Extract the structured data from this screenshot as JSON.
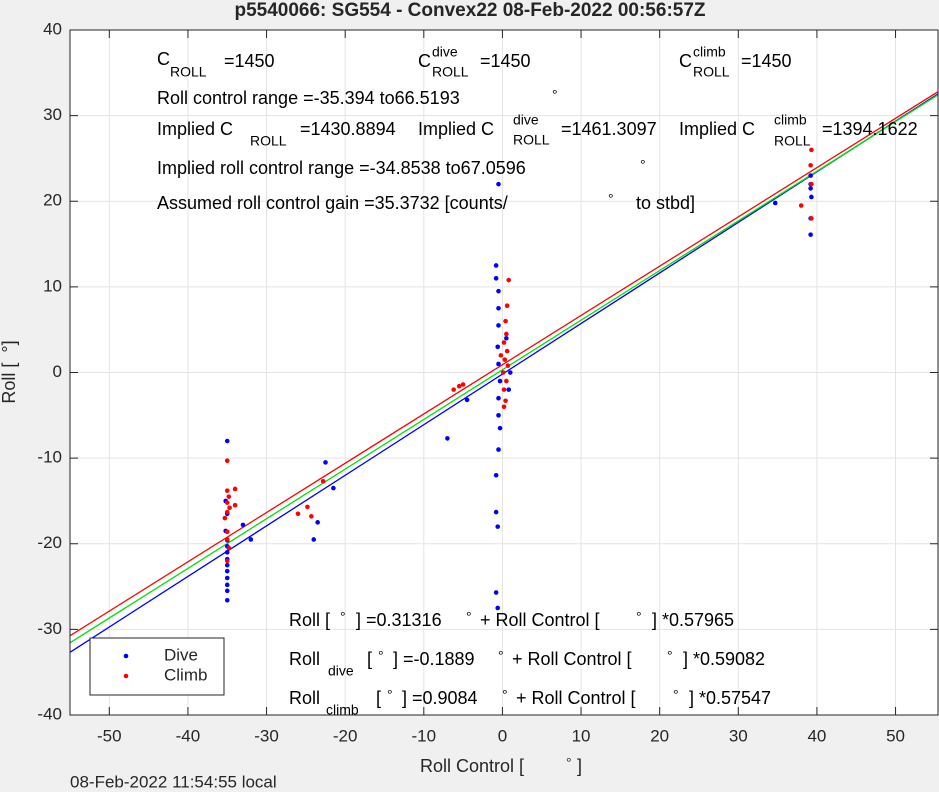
{
  "chart_data": {
    "type": "scatter",
    "title": "p5540066: SG554 - Convex22 08-Feb-2022 00:56:57Z",
    "xlabel": [
      "Roll Control [",
      "°",
      "]"
    ],
    "ylabel": "Roll [  °]",
    "footer": "08-Feb-2022 11:54:55 local",
    "xlim": [
      -55,
      55.4
    ],
    "ylim": [
      -40,
      40
    ],
    "xticks": [
      -50,
      -40,
      -30,
      -20,
      -10,
      0,
      10,
      20,
      30,
      40,
      50
    ],
    "yticks": [
      -40,
      -30,
      -20,
      -10,
      0,
      10,
      20,
      30,
      40
    ],
    "grid": true,
    "legend": "lower-left",
    "series": [
      {
        "name": "Dive",
        "color": "#0000ff",
        "x": [
          -35,
          -35,
          -35,
          -35,
          -35,
          -35,
          -35,
          -35,
          -35,
          -35,
          -35.2,
          -35,
          -35.2,
          -35,
          -33,
          -32,
          -24,
          -23.5,
          -22.5,
          -21.5,
          -7,
          -4.5,
          -0.5,
          -0.8,
          -0.8,
          -0.5,
          -0.5,
          -0.5,
          -0.6,
          -0.5,
          -0.3,
          -0.5,
          -0.5,
          -0.3,
          -0.5,
          -0.8,
          -0.8,
          -0.6,
          -0.8,
          -0.6,
          0.5,
          0.8,
          1,
          34.7,
          39.2,
          39.2,
          39.2,
          39.3,
          39.2,
          39.2
        ],
        "values": [
          -26.6,
          -25.5,
          -24.8,
          -24,
          -23.2,
          -22.5,
          -21.8,
          -21,
          -20.3,
          -19.6,
          -18.5,
          -16.5,
          -15,
          -8,
          -17.8,
          -19.5,
          -19.5,
          -17.5,
          -10.5,
          -13.5,
          -7.7,
          -3.2,
          22,
          12.5,
          11,
          9.5,
          7.5,
          5.5,
          3,
          1,
          -1,
          -3,
          -5,
          -6.5,
          -9,
          -12,
          -16.3,
          -18,
          -25.7,
          -27.5,
          4,
          -2,
          0,
          19.8,
          23,
          22,
          21.5,
          20.5,
          18,
          16.1
        ]
      },
      {
        "name": "Climb",
        "color": "#ff0000",
        "x": [
          -35,
          -35,
          -34.8,
          -35,
          -34.7,
          -35,
          -35.3,
          -35,
          -35,
          -34.8,
          -35,
          -34,
          -34,
          -26,
          -24.8,
          -24.3,
          -22.8,
          -6.2,
          -5.5,
          -5,
          0.8,
          0.6,
          0.4,
          0.5,
          0.2,
          0.6,
          0.3,
          0.7,
          0.1,
          0.5,
          0.2,
          0.4,
          0.2,
          -0.2,
          38,
          39.3,
          39.2,
          39.3,
          39.3
        ],
        "values": [
          -10.3,
          -13.8,
          -14.5,
          -15.2,
          -15.8,
          -16.3,
          -17,
          -18.6,
          -19.5,
          -20.5,
          -22,
          -13.6,
          -15.5,
          -16.5,
          -15.7,
          -16.8,
          -12.7,
          -2,
          -1.6,
          -1.4,
          10.8,
          7.8,
          6,
          4.5,
          3.5,
          2.5,
          1.5,
          0.8,
          0,
          -1,
          -2,
          -3.3,
          -4,
          2,
          19.5,
          26,
          24.2,
          22,
          18
        ]
      }
    ],
    "lines": [
      {
        "color": "#0000ff",
        "x": [
          -55,
          55.4
        ],
        "values": [
          -32.68,
          32.54
        ]
      },
      {
        "color": "#00e000",
        "x": [
          -55,
          55.4
        ],
        "values": [
          -31.57,
          32.43
        ]
      },
      {
        "color": "#ff0000",
        "x": [
          -55,
          55.4
        ],
        "values": [
          -30.74,
          32.79
        ]
      }
    ],
    "annotations": [
      [
        "C",
        "ROLL",
        "=1450"
      ],
      [
        "C",
        "dive",
        "ROLL",
        "=1450"
      ],
      [
        "C",
        "climb",
        "ROLL",
        "=1450"
      ],
      [
        "Roll control range =-35.394 to66.5193",
        "°"
      ],
      [
        "Implied C",
        "ROLL",
        "=1430.8894"
      ],
      [
        "Implied C",
        "dive",
        "ROLL",
        "=1461.3097"
      ],
      [
        "Implied C",
        "climb",
        "ROLL",
        "=1394.1622"
      ],
      [
        "Implied roll control range =-34.8538 to67.0596",
        "°"
      ],
      [
        "Assumed roll control gain =35.3732 [counts/",
        "°",
        "to stbd]"
      ],
      [
        "Roll [",
        "°",
        "] =0.31316",
        "°",
        "+ Roll Control [",
        "°",
        "] *0.57965"
      ],
      [
        "Roll",
        "dive",
        "[",
        "°",
        "] =-0.1889",
        "°",
        "+ Roll Control [",
        "°",
        "] *0.59082"
      ],
      [
        "Roll",
        "climb",
        "[",
        "°",
        "] =0.9084",
        "°",
        "+ Roll Control [",
        "°",
        "] *0.57547"
      ]
    ]
  }
}
